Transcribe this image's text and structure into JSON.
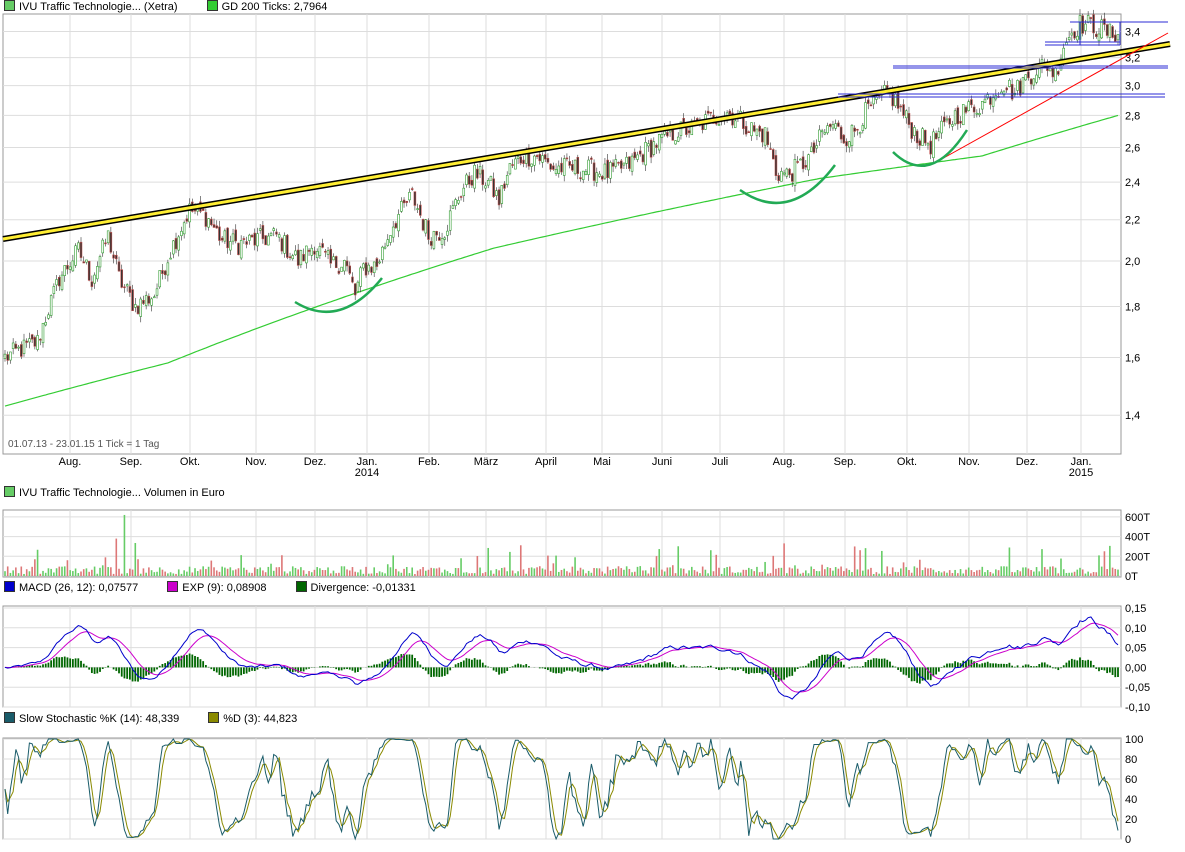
{
  "colors": {
    "price_up": "#2e9a2e",
    "price_down": "#c0504d",
    "gd200": "#33cc33",
    "trend_black": "#000000",
    "trend_yellow": "#ffee33",
    "trend_red": "#ff0000",
    "resistance": "#2b2bd4",
    "pattern": "#22aa55",
    "macd": "#0000cc",
    "exp": "#cc00cc",
    "divergence": "#006600",
    "stoch_k": "#1a5c6a",
    "stoch_d": "#8a8a00",
    "volume_up": "#66cc66",
    "volume_down": "#dd7777",
    "grid": "#dddddd"
  },
  "panels": {
    "price": {
      "legend": [
        {
          "label": "IVU Traffic Technologie... (Xetra)",
          "color": "#66cc66"
        },
        {
          "label": "GD 200 Ticks: 2,7964",
          "color": "#33cc33"
        }
      ],
      "footnote": "01.07.13 - 23.01.15   1 Tick = 1 Tag"
    },
    "volume": {
      "legend": [
        {
          "label": "IVU Traffic Technologie... Volumen in Euro",
          "color": "#66cc66"
        }
      ]
    },
    "macd": {
      "legend": [
        {
          "label": "MACD (26, 12): 0,07577",
          "color": "#0000cc"
        },
        {
          "label": "EXP (9): 0,08908",
          "color": "#cc00cc"
        },
        {
          "label": "Divergence: -0,01331",
          "color": "#006600"
        }
      ]
    },
    "stochastic": {
      "legend": [
        {
          "label": "Slow Stochastic %K (14): 48,339",
          "color": "#1a5c6a"
        },
        {
          "label": "%D (3): 44,823",
          "color": "#8a8a00"
        }
      ]
    }
  },
  "chart_data": [
    {
      "type": "candlestick",
      "title": "IVU Traffic Technologie... (Xetra)",
      "x_range": [
        "2013-07-01",
        "2015-01-23"
      ],
      "months": [
        "Aug.",
        "Sep.",
        "Okt.",
        "Nov.",
        "Dez.",
        "Jan.",
        "Feb.",
        "März",
        "April",
        "Mai",
        "Juni",
        "Juli",
        "Aug.",
        "Sep.",
        "Okt.",
        "Nov.",
        "Dez.",
        "Jan."
      ],
      "years": [
        "2014",
        "2015"
      ],
      "y_ticks": [
        "1,4",
        "1,6",
        "1,8",
        "2,0",
        "2,2",
        "2,4",
        "2,6",
        "2,8",
        "3,0",
        "3,2",
        "3,4"
      ],
      "ylim": [
        1.28,
        3.54
      ],
      "y_scale": "log",
      "close_anchors": [
        [
          0,
          1.6
        ],
        [
          12,
          1.66
        ],
        [
          20,
          1.92
        ],
        [
          27,
          2.05
        ],
        [
          32,
          1.92
        ],
        [
          38,
          2.12
        ],
        [
          42,
          1.92
        ],
        [
          48,
          1.8
        ],
        [
          55,
          1.85
        ],
        [
          62,
          2.08
        ],
        [
          68,
          2.25
        ],
        [
          74,
          2.22
        ],
        [
          80,
          2.1
        ],
        [
          86,
          2.08
        ],
        [
          93,
          2.1
        ],
        [
          100,
          2.12
        ],
        [
          108,
          2.0
        ],
        [
          114,
          2.08
        ],
        [
          120,
          1.98
        ],
        [
          125,
          2.0
        ],
        [
          129,
          1.85
        ],
        [
          132,
          1.97
        ],
        [
          137,
          1.98
        ],
        [
          143,
          2.18
        ],
        [
          150,
          2.33
        ],
        [
          156,
          2.12
        ],
        [
          162,
          2.15
        ],
        [
          168,
          2.35
        ],
        [
          173,
          2.45
        ],
        [
          178,
          2.4
        ],
        [
          182,
          2.3
        ],
        [
          186,
          2.48
        ],
        [
          191,
          2.55
        ],
        [
          196,
          2.55
        ],
        [
          202,
          2.48
        ],
        [
          208,
          2.48
        ],
        [
          216,
          2.47
        ],
        [
          222,
          2.45
        ],
        [
          230,
          2.5
        ],
        [
          236,
          2.58
        ],
        [
          242,
          2.65
        ],
        [
          248,
          2.7
        ],
        [
          254,
          2.72
        ],
        [
          260,
          2.78
        ],
        [
          266,
          2.82
        ],
        [
          272,
          2.76
        ],
        [
          276,
          2.7
        ],
        [
          280,
          2.68
        ],
        [
          284,
          2.46
        ],
        [
          288,
          2.44
        ],
        [
          292,
          2.48
        ],
        [
          297,
          2.55
        ],
        [
          301,
          2.68
        ],
        [
          305,
          2.74
        ],
        [
          309,
          2.66
        ],
        [
          313,
          2.7
        ],
        [
          317,
          2.82
        ],
        [
          321,
          2.88
        ],
        [
          325,
          2.95
        ],
        [
          328,
          2.9
        ],
        [
          331,
          2.8
        ],
        [
          334,
          2.72
        ],
        [
          337,
          2.66
        ],
        [
          341,
          2.62
        ],
        [
          345,
          2.7
        ],
        [
          350,
          2.8
        ],
        [
          355,
          2.84
        ],
        [
          360,
          2.88
        ],
        [
          364,
          2.95
        ],
        [
          368,
          3.02
        ],
        [
          372,
          2.95
        ],
        [
          376,
          3.05
        ],
        [
          380,
          3.12
        ],
        [
          384,
          3.15
        ],
        [
          387,
          3.08
        ],
        [
          390,
          3.3
        ],
        [
          393,
          3.4
        ],
        [
          396,
          3.46
        ],
        [
          400,
          3.45
        ],
        [
          404,
          3.42
        ],
        [
          407,
          3.38
        ],
        [
          410,
          3.4
        ]
      ],
      "gd200": [
        [
          0,
          1.43
        ],
        [
          60,
          1.58
        ],
        [
          120,
          1.82
        ],
        [
          180,
          2.06
        ],
        [
          240,
          2.24
        ],
        [
          300,
          2.42
        ],
        [
          360,
          2.55
        ],
        [
          410,
          2.8
        ]
      ],
      "gd200_label": "GD 200 Ticks: 2,7964"
    },
    {
      "type": "bar",
      "title": "IVU Traffic Technologie... Volumen in Euro",
      "y_ticks": [
        "0T",
        "200T",
        "400T",
        "600T"
      ],
      "ylim": [
        0,
        650
      ]
    },
    {
      "type": "line",
      "title": "MACD (26, 12) / EXP (9) / Divergence",
      "y_ticks": [
        "-0,10",
        "-0,05",
        "0,00",
        "0,05",
        "0,10",
        "0,15"
      ],
      "ylim": [
        -0.1,
        0.15
      ],
      "latest": {
        "macd": 0.07577,
        "exp": 0.08908,
        "divergence": -0.01331
      }
    },
    {
      "type": "line",
      "title": "Slow Stochastic %K (14) / %D (3)",
      "y_ticks": [
        "0",
        "20",
        "40",
        "60",
        "80",
        "100"
      ],
      "ylim": [
        0,
        100
      ],
      "latest": {
        "k": 48.339,
        "d": 44.823
      }
    }
  ]
}
